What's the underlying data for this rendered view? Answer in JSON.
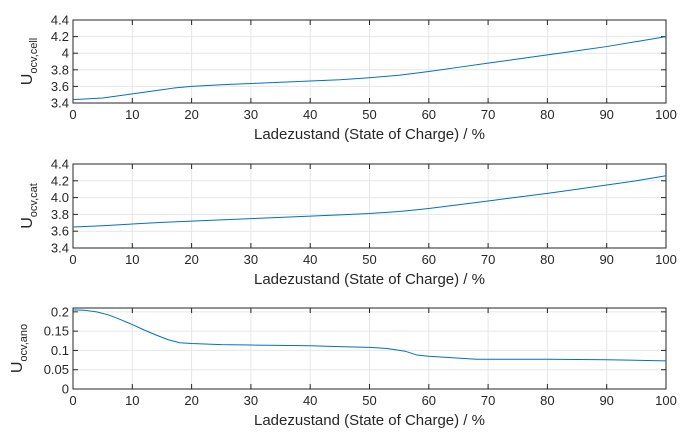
{
  "chart_data": [
    {
      "type": "line",
      "xlabel": "Ladezustand (State of Charge) / %",
      "ylabel_main": "U",
      "ylabel_sub": "ocv,cell",
      "xlim": [
        0,
        100
      ],
      "ylim": [
        3.4,
        4.4
      ],
      "xticks": [
        "0",
        "10",
        "20",
        "30",
        "40",
        "50",
        "60",
        "70",
        "80",
        "90",
        "100"
      ],
      "yticks": [
        "3.4",
        "3.6",
        "3.8",
        "4",
        "4.2",
        "4.4"
      ],
      "grid": true,
      "series": [
        {
          "x": [
            0,
            5,
            10,
            15,
            17,
            20,
            25,
            30,
            35,
            40,
            45,
            50,
            55,
            60,
            65,
            70,
            75,
            80,
            85,
            90,
            95,
            100
          ],
          "y": [
            3.44,
            3.46,
            3.51,
            3.56,
            3.58,
            3.6,
            3.62,
            3.635,
            3.65,
            3.665,
            3.68,
            3.705,
            3.735,
            3.78,
            3.83,
            3.88,
            3.93,
            3.98,
            4.03,
            4.08,
            4.14,
            4.2
          ]
        }
      ]
    },
    {
      "type": "line",
      "xlabel": "Ladezustand (State of Charge) / %",
      "ylabel_main": "U",
      "ylabel_sub": "ocv,cat",
      "xlim": [
        0,
        100
      ],
      "ylim": [
        3.4,
        4.4
      ],
      "xticks": [
        "0",
        "10",
        "20",
        "30",
        "40",
        "50",
        "60",
        "70",
        "80",
        "90",
        "100"
      ],
      "yticks": [
        "3.4",
        "3.6",
        "3.8",
        "4.0",
        "4.2",
        "4.4"
      ],
      "grid": true,
      "series": [
        {
          "x": [
            0,
            5,
            10,
            15,
            20,
            25,
            30,
            35,
            40,
            45,
            50,
            55,
            58,
            60,
            65,
            70,
            75,
            80,
            85,
            90,
            95,
            100
          ],
          "y": [
            3.65,
            3.665,
            3.685,
            3.705,
            3.72,
            3.735,
            3.75,
            3.765,
            3.78,
            3.795,
            3.81,
            3.835,
            3.855,
            3.87,
            3.915,
            3.96,
            4.005,
            4.05,
            4.1,
            4.15,
            4.2,
            4.26
          ]
        }
      ]
    },
    {
      "type": "line",
      "xlabel": "Ladezustand (State of Charge) / %",
      "ylabel_main": "U",
      "ylabel_sub": "ocv,ano",
      "xlim": [
        0,
        100
      ],
      "ylim": [
        0,
        0.21
      ],
      "xticks": [
        "0",
        "10",
        "20",
        "30",
        "40",
        "50",
        "60",
        "70",
        "80",
        "90",
        "100"
      ],
      "yticks": [
        "0",
        "0.05",
        "0.1",
        "0.15",
        "0.2"
      ],
      "grid": true,
      "series": [
        {
          "x": [
            0,
            2,
            4,
            6,
            8,
            10,
            12,
            14,
            16,
            18,
            20,
            25,
            30,
            35,
            40,
            45,
            50,
            53,
            56,
            58,
            60,
            65,
            68,
            70,
            80,
            90,
            100
          ],
          "y": [
            0.205,
            0.204,
            0.2,
            0.192,
            0.18,
            0.167,
            0.153,
            0.14,
            0.128,
            0.12,
            0.118,
            0.115,
            0.114,
            0.113,
            0.112,
            0.11,
            0.108,
            0.105,
            0.098,
            0.088,
            0.085,
            0.08,
            0.077,
            0.077,
            0.077,
            0.076,
            0.073
          ]
        }
      ]
    }
  ]
}
